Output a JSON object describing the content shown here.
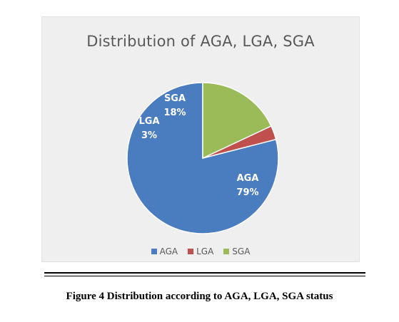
{
  "chart_data": {
    "type": "pie",
    "title": "Distribution of AGA, LGA, SGA",
    "categories": [
      "AGA",
      "LGA",
      "SGA"
    ],
    "values": [
      79,
      3,
      18
    ],
    "data_labels": [
      {
        "name": "AGA",
        "value": "79%"
      },
      {
        "name": "LGA",
        "value": "3%"
      },
      {
        "name": "SGA",
        "value": "18%"
      }
    ],
    "colors": [
      "#4a7cc0",
      "#c0504d",
      "#9bbb59"
    ],
    "legend": "bottom",
    "start_angle": "12 o'clock",
    "direction": "counter-clockwise"
  },
  "caption": "Figure 4 Distribution according to AGA, LGA, SGA status"
}
